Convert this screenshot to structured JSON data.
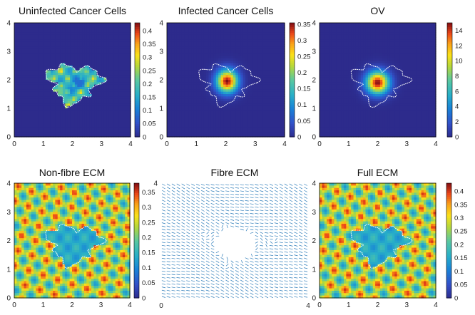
{
  "figure": {
    "description_note": "Six-panel simulation snapshot on domain [0,4]x[0,4]"
  },
  "chart_data": [
    {
      "type": "heatmap",
      "title": "Uninfected Cancer Cells",
      "xlim": [
        0,
        4
      ],
      "ylim": [
        0,
        4
      ],
      "xticks": [
        "0",
        "1",
        "2",
        "3",
        "4"
      ],
      "yticks": [
        "0",
        "1",
        "2",
        "3",
        "4"
      ],
      "colorbar": {
        "min": 0,
        "max": 0.43,
        "ticks": [
          "0",
          "0.05",
          "0.1",
          "0.15",
          "0.2",
          "0.25",
          "0.3",
          "0.35",
          "0.4"
        ],
        "tick_values": [
          0,
          0.05,
          0.1,
          0.15,
          0.2,
          0.25,
          0.3,
          0.35,
          0.4
        ]
      },
      "field": "uninfected",
      "colormap": "parula-jet"
    },
    {
      "type": "heatmap",
      "title": "Infected Cancer Cells",
      "xlim": [
        0,
        4
      ],
      "ylim": [
        0,
        4
      ],
      "xticks": [
        "0",
        "1",
        "2",
        "3",
        "4"
      ],
      "yticks": [
        "0",
        "1",
        "2",
        "3",
        "4"
      ],
      "colorbar": {
        "min": 0,
        "max": 0.355,
        "ticks": [
          "0",
          "0.05",
          "0.1",
          "0.15",
          "0.2",
          "0.25",
          "0.3",
          "0.35"
        ],
        "tick_values": [
          0,
          0.05,
          0.1,
          0.15,
          0.2,
          0.25,
          0.3,
          0.35
        ]
      },
      "field": "infected",
      "colormap": "parula-jet"
    },
    {
      "type": "heatmap",
      "title": "OV",
      "xlim": [
        0,
        4
      ],
      "ylim": [
        0,
        4
      ],
      "xticks": [
        "0",
        "1",
        "2",
        "3",
        "4"
      ],
      "yticks": [
        "0",
        "1",
        "2",
        "3",
        "4"
      ],
      "colorbar": {
        "min": 0,
        "max": 15,
        "ticks": [
          "0",
          "2",
          "4",
          "6",
          "8",
          "10",
          "12",
          "14"
        ],
        "tick_values": [
          0,
          2,
          4,
          6,
          8,
          10,
          12,
          14
        ]
      },
      "field": "ov",
      "colormap": "parula-jet"
    },
    {
      "type": "heatmap",
      "title": "Non-fibre ECM",
      "xlim": [
        0,
        4
      ],
      "ylim": [
        0,
        4
      ],
      "xticks": [
        "0",
        "1",
        "2",
        "3",
        "4"
      ],
      "yticks": [
        "0",
        "1",
        "2",
        "3",
        "4"
      ],
      "colorbar": {
        "min": 0,
        "max": 0.38,
        "ticks": [
          "0",
          "0.05",
          "0.1",
          "0.15",
          "0.2",
          "0.25",
          "0.3",
          "0.35"
        ],
        "tick_values": [
          0,
          0.05,
          0.1,
          0.15,
          0.2,
          0.25,
          0.3,
          0.35
        ]
      },
      "field": "ecm",
      "colormap": "parula-jet"
    },
    {
      "type": "vector-field",
      "title": "Fibre ECM",
      "xlim": [
        0,
        4
      ],
      "ylim": [
        0,
        4
      ],
      "xticks": [
        "0",
        "4"
      ],
      "yticks": [
        "4"
      ],
      "field": "fibre",
      "arrow_color": "#2a7ab8"
    },
    {
      "type": "heatmap",
      "title": "Full ECM",
      "xlim": [
        0,
        4
      ],
      "ylim": [
        0,
        4
      ],
      "xticks": [
        "0",
        "1",
        "2",
        "3",
        "4"
      ],
      "yticks": [
        "0",
        "1",
        "2",
        "3",
        "4"
      ],
      "colorbar": {
        "min": 0,
        "max": 0.43,
        "ticks": [
          "0",
          "0.05",
          "0.1",
          "0.15",
          "0.2",
          "0.25",
          "0.3",
          "0.35",
          "0.4"
        ],
        "tick_values": [
          0,
          0.05,
          0.1,
          0.15,
          0.2,
          0.25,
          0.3,
          0.35,
          0.4
        ]
      },
      "field": "ecm",
      "colormap": "parula-jet"
    }
  ]
}
